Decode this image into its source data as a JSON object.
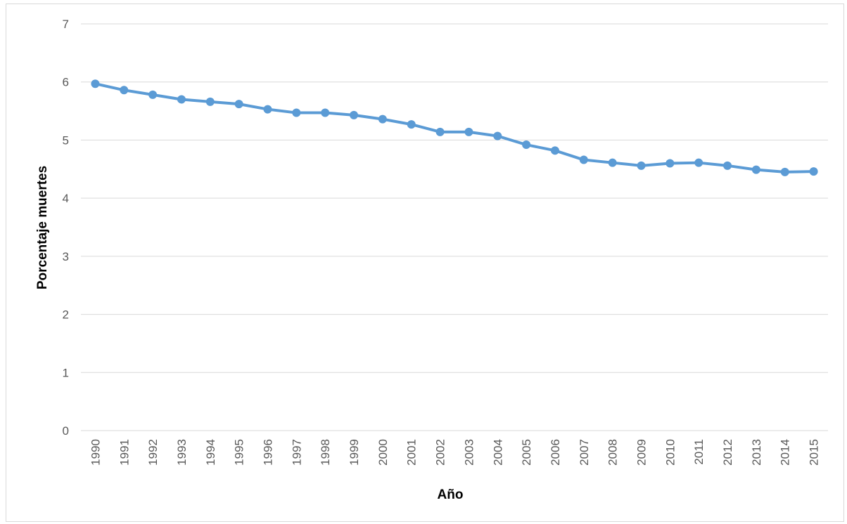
{
  "chart_data": {
    "type": "line",
    "xlabel": "Año",
    "ylabel": "Porcentaje muertes",
    "categories": [
      "1990",
      "1991",
      "1992",
      "1993",
      "1994",
      "1995",
      "1996",
      "1997",
      "1998",
      "1999",
      "2000",
      "2001",
      "2002",
      "2003",
      "2004",
      "2005",
      "2006",
      "2007",
      "2008",
      "2009",
      "2010",
      "2011",
      "2012",
      "2013",
      "2014",
      "2015"
    ],
    "series": [
      {
        "color": "#5b9bd5",
        "values": [
          5.97,
          5.86,
          5.78,
          5.7,
          5.66,
          5.62,
          5.53,
          5.47,
          5.47,
          5.43,
          5.36,
          5.27,
          5.14,
          5.14,
          5.07,
          4.92,
          4.82,
          4.66,
          4.61,
          4.56,
          4.6,
          4.61,
          4.56,
          4.49,
          4.45,
          4.46
        ]
      }
    ],
    "ylim": [
      0,
      7
    ],
    "yticks": [
      0,
      1,
      2,
      3,
      4,
      5,
      6,
      7
    ],
    "grid": true
  }
}
